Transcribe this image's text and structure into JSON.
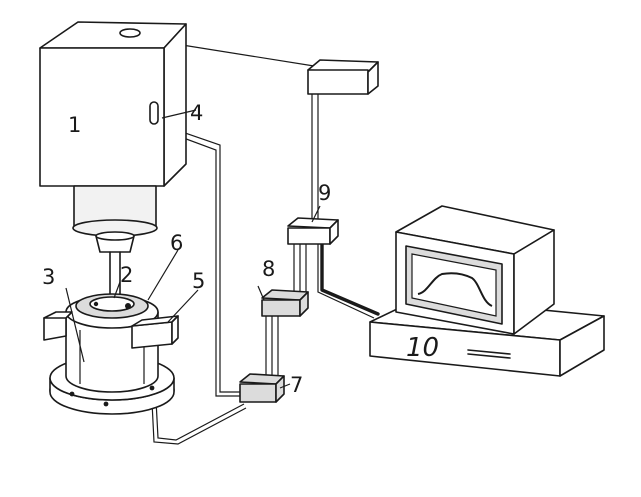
{
  "labels": {
    "l1": "1",
    "l2": "2",
    "l3": "3",
    "l4": "4",
    "l5": "5",
    "l6": "6",
    "l7": "7",
    "l8": "8",
    "l9": "9",
    "l10": "10"
  }
}
